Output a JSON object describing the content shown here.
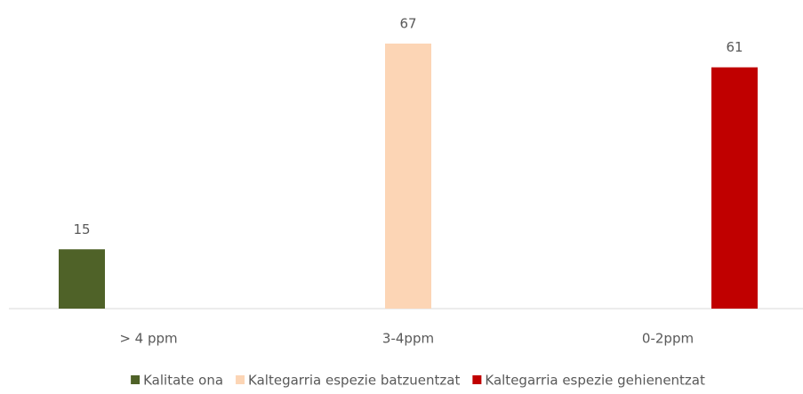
{
  "chart_data": {
    "type": "bar",
    "categories": [
      "> 4 ppm",
      "3-4ppm",
      "0-2ppm"
    ],
    "series": [
      {
        "name": "Kalitate ona",
        "color": "#4f6228",
        "values": [
          15,
          null,
          null
        ]
      },
      {
        "name": "Kaltegarria espezie batzuentzat",
        "color": "#fcd5b5",
        "values": [
          null,
          67,
          null
        ]
      },
      {
        "name": "Kaltegarria espezie gehienentzat",
        "color": "#c00000",
        "values": [
          null,
          null,
          61
        ]
      }
    ],
    "legend": "bottom"
  }
}
